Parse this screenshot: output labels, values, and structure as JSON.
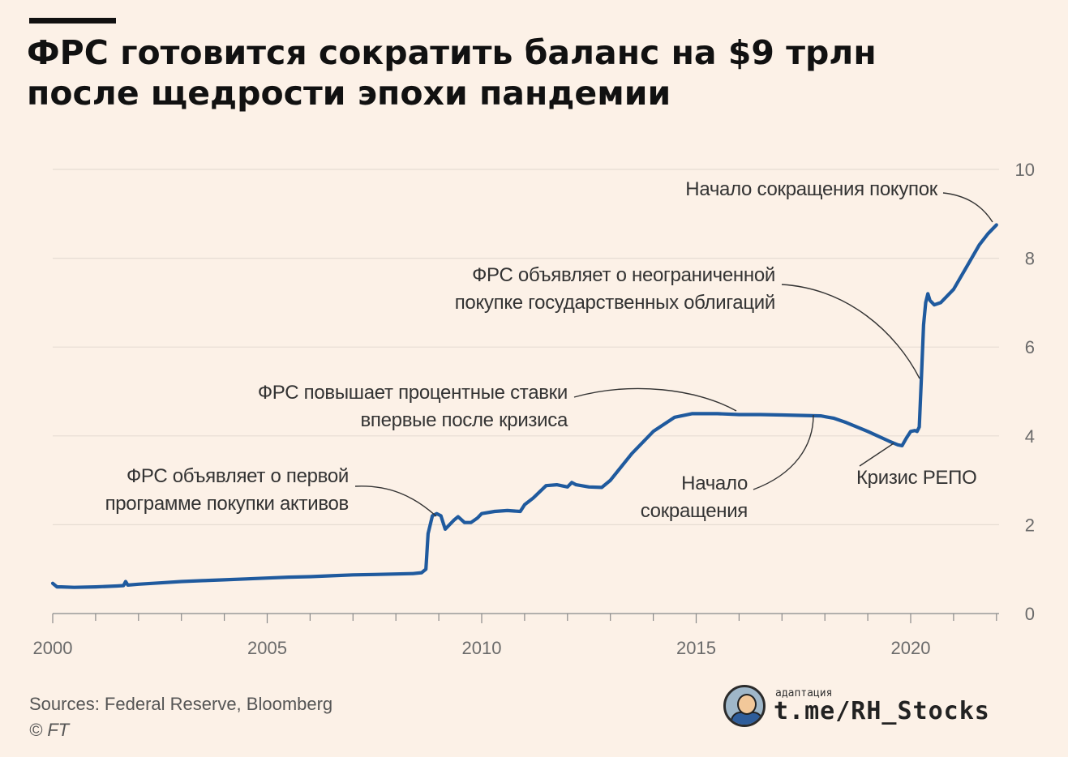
{
  "header": {
    "title_line1": "ФРС готовится сократить баланс на $9 трлн",
    "title_line2": "после щедрости эпохи пандемии"
  },
  "footer": {
    "source": "Sources: Federal Reserve, Bloomberg",
    "copyright": "© FT",
    "brand_small": "адаптация",
    "brand_handle": "t.me/RH_Stocks",
    "brand_avatar_icon": "cartoon-avatar-icon"
  },
  "colors": {
    "background": "#FCF1E7",
    "line": "#1F5A9E",
    "grid": "#E6DCD3",
    "axis_text": "#6b6b6b",
    "annotation_text": "#333333"
  },
  "chart_data": {
    "type": "line",
    "title": "ФРС готовится сократить баланс на $9 трлн после щедрости эпохи пандемии",
    "xlabel": "",
    "ylabel": "",
    "xlim": [
      2000,
      2022.2
    ],
    "ylim": [
      0,
      10
    ],
    "y_ticks": [
      0,
      2,
      4,
      6,
      8,
      10
    ],
    "x_ticks": [
      2000,
      2005,
      2010,
      2015,
      2020
    ],
    "y_axis_side": "right",
    "grid": "horizontal",
    "legend": "none",
    "series": [
      {
        "x": [
          2000.0,
          2000.1,
          2000.2,
          2000.5,
          2001.0,
          2001.5,
          2001.65,
          2001.7,
          2001.75,
          2002.0,
          2002.5,
          2003.0,
          2003.5,
          2004.0,
          2004.5,
          2005.0,
          2005.5,
          2006.0,
          2006.5,
          2007.0,
          2007.5,
          2008.0,
          2008.4,
          2008.6,
          2008.7,
          2008.75,
          2008.85,
          2008.95,
          2009.05,
          2009.15,
          2009.25,
          2009.35,
          2009.45,
          2009.6,
          2009.75,
          2009.9,
          2010.0,
          2010.3,
          2010.6,
          2010.9,
          2011.0,
          2011.2,
          2011.5,
          2011.75,
          2012.0,
          2012.1,
          2012.2,
          2012.5,
          2012.8,
          2013.0,
          2013.5,
          2014.0,
          2014.5,
          2014.9,
          2015.0,
          2015.5,
          2016.0,
          2016.5,
          2017.0,
          2017.5,
          2017.9,
          2018.2,
          2018.5,
          2019.0,
          2019.5,
          2019.7,
          2019.8,
          2019.9,
          2020.0,
          2020.1,
          2020.15,
          2020.2,
          2020.25,
          2020.3,
          2020.35,
          2020.4,
          2020.45,
          2020.55,
          2020.7,
          2021.0,
          2021.3,
          2021.6,
          2021.8,
          2022.0
        ],
        "y": [
          0.68,
          0.6,
          0.6,
          0.59,
          0.6,
          0.62,
          0.63,
          0.72,
          0.64,
          0.66,
          0.69,
          0.72,
          0.74,
          0.76,
          0.78,
          0.8,
          0.82,
          0.83,
          0.85,
          0.87,
          0.88,
          0.89,
          0.9,
          0.92,
          1.0,
          1.8,
          2.2,
          2.25,
          2.2,
          1.9,
          2.0,
          2.1,
          2.18,
          2.05,
          2.05,
          2.15,
          2.25,
          2.3,
          2.32,
          2.3,
          2.45,
          2.6,
          2.88,
          2.9,
          2.85,
          2.95,
          2.9,
          2.85,
          2.84,
          3.0,
          3.6,
          4.1,
          4.42,
          4.5,
          4.5,
          4.5,
          4.48,
          4.48,
          4.47,
          4.46,
          4.45,
          4.4,
          4.3,
          4.1,
          3.88,
          3.8,
          3.78,
          3.95,
          4.1,
          4.12,
          4.1,
          4.2,
          5.3,
          6.5,
          7.0,
          7.2,
          7.05,
          6.95,
          7.0,
          7.3,
          7.8,
          8.3,
          8.55,
          8.75
        ]
      }
    ],
    "annotations": [
      {
        "lines": [
          "Начало сокращения покупок"
        ],
        "x": 2021.85,
        "y": 8.6
      },
      {
        "lines": [
          "ФРС объявляет о неограниченной",
          "покупке государственных облигаций"
        ],
        "x": 2020.25,
        "y": 5.3
      },
      {
        "lines": [
          "ФРС повышает процентные ставки",
          "впервые после кризиса"
        ],
        "x": 2015.9,
        "y": 4.5
      },
      {
        "lines": [
          "Начало",
          "сокращения"
        ],
        "x": 2017.7,
        "y": 4.46
      },
      {
        "lines": [
          "Кризис РЕПО"
        ],
        "x": 2019.75,
        "y": 3.8
      },
      {
        "lines": [
          "ФРС объявляет о первой",
          "программе покупки активов"
        ],
        "x": 2008.8,
        "y": 2.1
      }
    ]
  }
}
